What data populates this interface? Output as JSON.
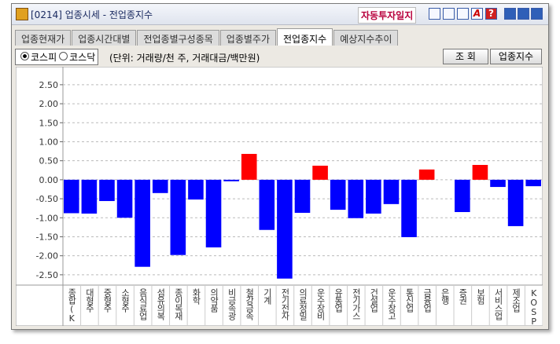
{
  "window": {
    "title": "[0214] 업종시세 - 전업종지수",
    "journal_button": "자동투자일지",
    "help": "?"
  },
  "tabs": [
    "업종현재가",
    "업종시간대별",
    "전업종별구성종목",
    "업종별주가",
    "전업종지수",
    "예상지수추이"
  ],
  "active_tab": 4,
  "toolbar": {
    "radios": [
      "코스피",
      "코스닥"
    ],
    "selected_radio": 0,
    "unit_note": "(단위: 거래량/천 주, 거래대금/백만원)",
    "buttons": [
      "조 회",
      "업종지수"
    ]
  },
  "chart_data": {
    "type": "bar",
    "categories": [
      "종합(K",
      "대형주",
      "중형주",
      "소형주",
      "음식료업",
      "섬유의복",
      "종이목재",
      "화학",
      "의약품",
      "비금속광",
      "철강금속",
      "기계",
      "전기전자",
      "의료정밀",
      "운수장비",
      "유통업",
      "전기가스",
      "건설업",
      "운수창고",
      "통신업",
      "금융업",
      "은행",
      "증권",
      "보험",
      "서비스업",
      "제조업",
      "KOSP"
    ],
    "values": [
      -0.88,
      -0.89,
      -0.56,
      -1.0,
      -2.29,
      -0.35,
      -1.98,
      -0.52,
      -1.78,
      -0.04,
      0.68,
      -1.32,
      -2.6,
      -0.87,
      0.37,
      -0.79,
      -1.01,
      -0.89,
      -0.64,
      -1.51,
      0.27,
      0,
      -0.85,
      0.39,
      -0.19,
      -1.22,
      -0.17
    ],
    "positive_color": "#ff0000",
    "negative_color": "#0000ff",
    "ylim": [
      -2.73,
      2.89
    ],
    "yticks": [
      {
        "value": 2.5,
        "label": "2.50"
      },
      {
        "value": 2,
        "label": "2.00"
      },
      {
        "value": 1.5,
        "label": "1.50"
      },
      {
        "value": 1,
        "label": "1.00"
      },
      {
        "value": 0.5,
        "label": "0.50"
      },
      {
        "value": 0,
        "label": "0.00"
      },
      {
        "value": -0.5,
        "label": "-0.50"
      },
      {
        "value": -1,
        "label": "-1.00"
      },
      {
        "value": -1.5,
        "label": "-1.50"
      },
      {
        "value": -2,
        "label": "-2.00"
      },
      {
        "value": -2.5,
        "label": "-2.50"
      }
    ],
    "grid": true
  }
}
